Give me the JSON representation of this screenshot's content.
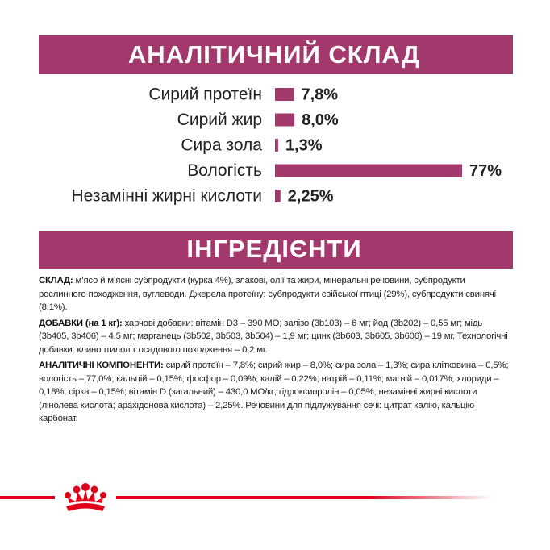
{
  "chart_data": {
    "type": "bar",
    "title": "АНАЛІТИЧНИЙ СКЛАД",
    "categories": [
      "Сирий протеїн",
      "Сирий жир",
      "Сира зола",
      "Вологість",
      "Незамінні жирні кислоти"
    ],
    "values": [
      7.8,
      8.0,
      1.3,
      77,
      2.25
    ],
    "value_labels": [
      "7,8%",
      "8,0%",
      "1,3%",
      "77%",
      "2,25%"
    ],
    "color": "#a3386c"
  },
  "ingredients": {
    "title": "ІНГРЕДІЄНТИ",
    "paragraphs": [
      {
        "label": "СКЛАД:",
        "text": "м’ясо й м’ясні субпродукти (курка 4%), злакові, олії та жири, мінеральні речовини, субпродукти рослинного походження, вуглеводи. Джерела протеїну: субпродукти свійської птиці (29%), субпродукти свинячі (8,1%)."
      },
      {
        "label": "ДОБАВКИ (на 1 кг):",
        "text": "харчові добавки: вітамін D3 – 390 МО; залізо (3b103) – 6 мг; йод (3b202) – 0,55 мг; мідь (3b405, 3b406) – 4,5 мг; марганець (3b502, 3b503, 3b504) – 1,9 мг; цинк (3b603, 3b605, 3b606) – 19 мг. Технологічні добавки: клиноптилоліт осадового походження – 0,2 мг."
      },
      {
        "label": "АНАЛІТИЧНІ КОМПОНЕНТИ:",
        "text": "сирий протеїн – 7,8%; сирий жир – 8,0%; сира зола – 1,3%; сира клітковина – 0,5%; вологість – 77,0%; кальцій – 0,15%; фосфор – 0,09%; калій – 0,22%; натрій – 0,11%; магній – 0,017%; хлориди – 0,18%; сірка – 0,15%; вітамін D (загальний) – 430,0 МО/кг; гідроксипролін – 0,05%; незамінні жирні кислоти (лінолева кислота; арахідонова кислота) – 2,25%. Речовини для підлужування сечі: цитрат калію, кальцію карбонат."
      }
    ]
  }
}
